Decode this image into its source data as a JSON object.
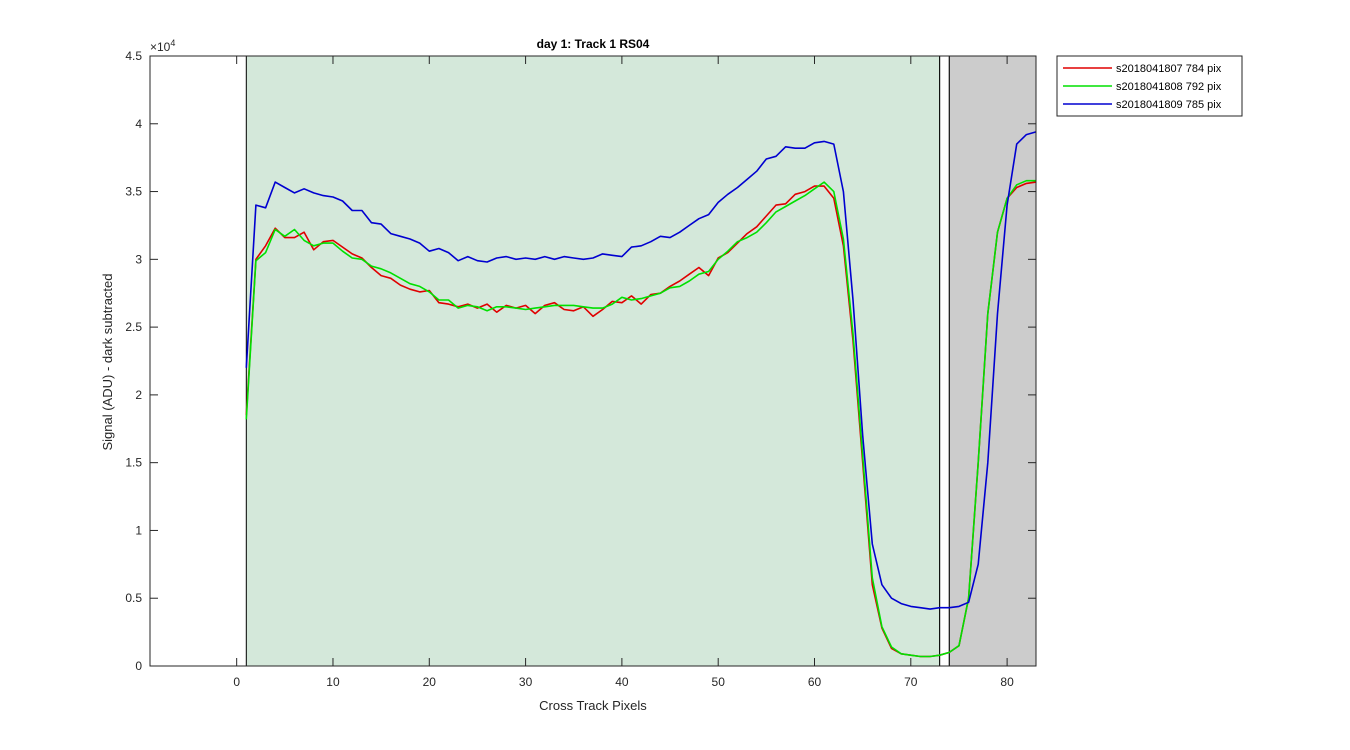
{
  "chart_data": {
    "type": "line",
    "title": "day 1: Track 1  RS04",
    "xlabel": "Cross Track Pixels",
    "ylabel": "Signal (ADU) - dark subtracted",
    "y_exponent_label": "×10",
    "y_exponent_power": "4",
    "xlim": [
      -9,
      83
    ],
    "ylim": [
      0,
      45000
    ],
    "x_ticks": [
      "0",
      "10",
      "20",
      "30",
      "40",
      "50",
      "60",
      "70",
      "80"
    ],
    "y_ticks": [
      "0",
      "0.5",
      "1",
      "1.5",
      "2",
      "2.5",
      "3",
      "3.5",
      "4",
      "4.5"
    ],
    "grid": false,
    "legend_position": "outside-top-right",
    "regions": [
      {
        "x0": 1,
        "x1": 73,
        "color": "#d4e8da",
        "edge": "#000000"
      },
      {
        "x0": 73,
        "x1": 74,
        "color": "#ffffff",
        "edge": "#000000"
      },
      {
        "x0": 74,
        "x1": 83,
        "color": "#cccccc",
        "edge": "#000000"
      }
    ],
    "x": [
      1,
      2,
      3,
      4,
      5,
      6,
      7,
      8,
      9,
      10,
      11,
      12,
      13,
      14,
      15,
      16,
      17,
      18,
      19,
      20,
      21,
      22,
      23,
      24,
      25,
      26,
      27,
      28,
      29,
      30,
      31,
      32,
      33,
      34,
      35,
      36,
      37,
      38,
      39,
      40,
      41,
      42,
      43,
      44,
      45,
      46,
      47,
      48,
      49,
      50,
      51,
      52,
      53,
      54,
      55,
      56,
      57,
      58,
      59,
      60,
      61,
      62,
      63,
      64,
      65,
      66,
      67,
      68,
      69,
      70,
      71,
      72,
      73,
      74,
      75,
      76,
      77,
      78,
      79,
      80,
      81,
      82,
      83
    ],
    "series": [
      {
        "name": "s2018041807 784 pix",
        "color": "#e00000",
        "values": [
          18500,
          30000,
          31000,
          32300,
          31600,
          31600,
          32000,
          30700,
          31300,
          31400,
          30900,
          30400,
          30100,
          29400,
          28800,
          28600,
          28100,
          27800,
          27600,
          27700,
          26800,
          26700,
          26500,
          26700,
          26400,
          26700,
          26100,
          26600,
          26400,
          26600,
          26000,
          26600,
          26800,
          26300,
          26200,
          26500,
          25800,
          26300,
          26900,
          26800,
          27300,
          26700,
          27400,
          27500,
          28000,
          28400,
          28900,
          29400,
          28800,
          30100,
          30500,
          31200,
          31900,
          32400,
          33200,
          34000,
          34100,
          34800,
          35000,
          35400,
          35400,
          34500,
          31000,
          24000,
          15000,
          6000,
          2800,
          1300,
          900,
          800,
          700,
          700,
          800,
          1000,
          1500,
          5000,
          15000,
          26000,
          32000,
          34500,
          35300,
          35600,
          35700
        ]
      },
      {
        "name": "s2018041808 792 pix",
        "color": "#00e000",
        "values": [
          18200,
          29900,
          30500,
          32200,
          31700,
          32200,
          31400,
          31000,
          31200,
          31200,
          30600,
          30100,
          30000,
          29500,
          29300,
          29000,
          28600,
          28200,
          28000,
          27600,
          27000,
          27000,
          26400,
          26600,
          26500,
          26200,
          26500,
          26500,
          26400,
          26300,
          26400,
          26500,
          26600,
          26600,
          26600,
          26500,
          26400,
          26400,
          26700,
          27200,
          27000,
          27100,
          27300,
          27500,
          27900,
          28000,
          28400,
          28900,
          29100,
          30000,
          30600,
          31300,
          31600,
          32000,
          32700,
          33500,
          33900,
          34300,
          34700,
          35200,
          35700,
          35000,
          31500,
          24500,
          15500,
          6500,
          2900,
          1400,
          900,
          800,
          700,
          700,
          800,
          1000,
          1500,
          5000,
          15000,
          26000,
          32000,
          34500,
          35500,
          35800,
          35800
        ]
      },
      {
        "name": "s2018041809 785 pix",
        "color": "#0000d0",
        "values": [
          22000,
          34000,
          33800,
          35700,
          35300,
          34900,
          35200,
          34900,
          34700,
          34600,
          34300,
          33600,
          33600,
          32700,
          32600,
          31900,
          31700,
          31500,
          31200,
          30600,
          30800,
          30500,
          29900,
          30200,
          29900,
          29800,
          30100,
          30200,
          30000,
          30100,
          30000,
          30200,
          30000,
          30200,
          30100,
          30000,
          30100,
          30400,
          30300,
          30200,
          30900,
          31000,
          31300,
          31700,
          31600,
          32000,
          32500,
          33000,
          33300,
          34200,
          34800,
          35300,
          35900,
          36500,
          37400,
          37600,
          38300,
          38200,
          38200,
          38600,
          38700,
          38500,
          35000,
          27000,
          17000,
          9000,
          6000,
          5000,
          4600,
          4400,
          4300,
          4200,
          4300,
          4300,
          4400,
          4700,
          7500,
          15000,
          26000,
          34000,
          38500,
          39200,
          39400
        ]
      }
    ]
  }
}
